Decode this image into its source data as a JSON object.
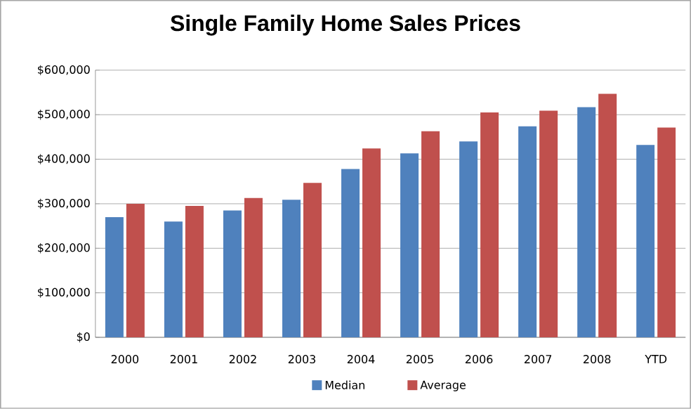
{
  "chart_data": {
    "type": "bar",
    "title": "Single Family Home Sales Prices",
    "categories": [
      "2000",
      "2001",
      "2002",
      "2003",
      "2004",
      "2005",
      "2006",
      "2007",
      "2008",
      "YTD"
    ],
    "series": [
      {
        "name": "Median",
        "color": "#4f81bd",
        "values": [
          270000,
          260000,
          285000,
          309000,
          378000,
          413000,
          440000,
          474000,
          517000,
          432000
        ]
      },
      {
        "name": "Average",
        "color": "#c0504d",
        "values": [
          300000,
          295000,
          313000,
          347000,
          424000,
          463000,
          505000,
          509000,
          547000,
          471000
        ]
      }
    ],
    "ylim": [
      0,
      600000
    ],
    "yticks": [
      {
        "value": 0,
        "label": "$0"
      },
      {
        "value": 100000,
        "label": "$100,000"
      },
      {
        "value": 200000,
        "label": "$200,000"
      },
      {
        "value": 300000,
        "label": "$300,000"
      },
      {
        "value": 400000,
        "label": "$400,000"
      },
      {
        "value": 500000,
        "label": "$500,000"
      },
      {
        "value": 600000,
        "label": "$600,000"
      }
    ],
    "grid": "y",
    "legend": "bottom"
  }
}
